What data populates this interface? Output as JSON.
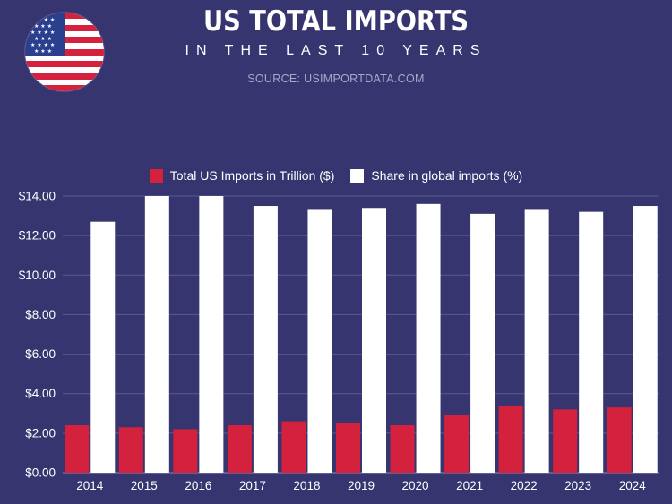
{
  "header": {
    "title": "US TOTAL IMPORTS",
    "subtitle": "IN THE LAST 10 YEARS",
    "source": "SOURCE:  USIMPORTDATA.COM"
  },
  "colors": {
    "background": "#36356f",
    "imports_series": "#d4213d",
    "share_series": "#ffffff",
    "grid": "#5a5a90",
    "text": "#ffffff"
  },
  "chart_data": {
    "type": "bar",
    "categories": [
      "2014",
      "2015",
      "2016",
      "2017",
      "2018",
      "2019",
      "2020",
      "2021",
      "2022",
      "2023",
      "2024"
    ],
    "series": [
      {
        "name": "Total US Imports in Trillion ($)",
        "values": [
          2.4,
          2.3,
          2.2,
          2.4,
          2.6,
          2.5,
          2.4,
          2.9,
          3.4,
          3.2,
          3.3
        ]
      },
      {
        "name": "Share in global imports (%)",
        "values": [
          12.7,
          14.0,
          14.0,
          13.5,
          13.3,
          13.4,
          13.6,
          13.1,
          13.3,
          13.2,
          13.5
        ]
      }
    ],
    "yticks": [
      "$0.00",
      "$2.00",
      "$4.00",
      "$6.00",
      "$8.00",
      "$10.00",
      "$12.00",
      "$14.00"
    ],
    "ylim": [
      0,
      14
    ],
    "grid": true,
    "legend_position": "top-center"
  }
}
